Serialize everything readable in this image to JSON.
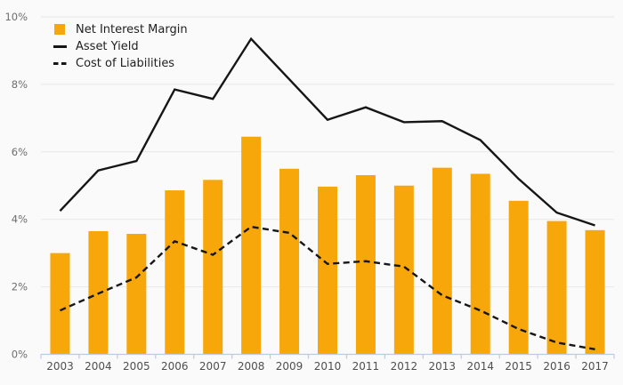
{
  "chart_data": {
    "type": "combo",
    "title": "",
    "xlabel": "",
    "ylabel": "",
    "categories": [
      "2003",
      "2004",
      "2005",
      "2006",
      "2007",
      "2008",
      "2009",
      "2010",
      "2011",
      "2012",
      "2013",
      "2014",
      "2015",
      "2016",
      "2017"
    ],
    "series": [
      {
        "name": "Net Interest Margin",
        "type": "bar",
        "color": "#F7A70A",
        "values": [
          3.0,
          3.65,
          3.57,
          4.86,
          5.17,
          6.45,
          5.5,
          4.97,
          5.31,
          5.0,
          5.53,
          5.35,
          4.55,
          3.95,
          3.68
        ]
      },
      {
        "name": "Asset Yield",
        "type": "line",
        "style": "solid",
        "color": "#161616",
        "values": [
          4.25,
          5.45,
          5.73,
          7.85,
          7.57,
          9.35,
          8.15,
          6.95,
          7.32,
          6.88,
          6.91,
          6.35,
          5.2,
          4.2,
          3.82
        ]
      },
      {
        "name": "Cost of Liabilities",
        "type": "line",
        "style": "dashed",
        "color": "#161616",
        "values": [
          1.3,
          1.8,
          2.28,
          3.35,
          2.95,
          3.78,
          3.6,
          2.68,
          2.76,
          2.6,
          1.75,
          1.3,
          0.75,
          0.35,
          0.15
        ]
      }
    ],
    "ylim": [
      0,
      10
    ],
    "y_ticks": [
      "0%",
      "2%",
      "4%",
      "6%",
      "8%",
      "10%"
    ],
    "grid": true,
    "legend_position": "top-left"
  },
  "palette": {
    "background": "#fafafa",
    "gridline": "#e7e7e7",
    "axis_line": "#bfc9dd",
    "y_tick_text": "#6e6e6e",
    "x_tick_text": "#4f4f4f",
    "bar": "#F7A70A",
    "line": "#161616"
  }
}
